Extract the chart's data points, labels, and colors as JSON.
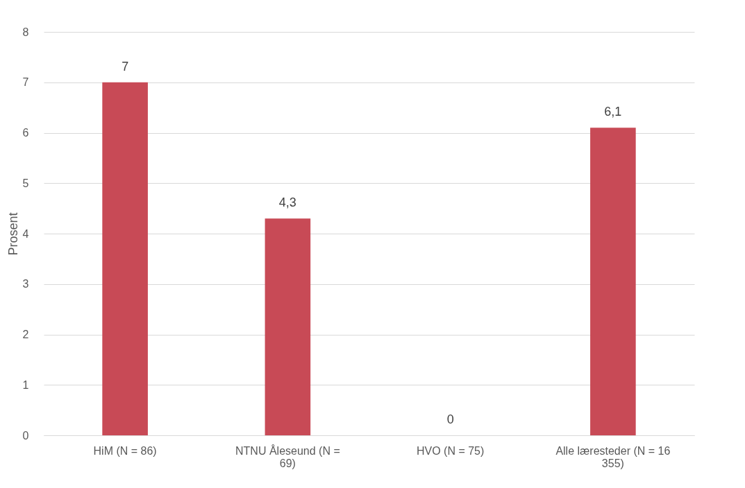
{
  "chart_data": {
    "type": "bar",
    "ylabel": "Prosent",
    "categories": [
      "HiM (N = 86)",
      "NTNU Åleseund (N = 69)",
      "HVO (N = 75)",
      "Alle læresteder (N = 16 355)"
    ],
    "values": [
      7,
      4.3,
      0,
      6.1
    ],
    "value_labels": [
      "7",
      "4,3",
      "0",
      "6,1"
    ],
    "color": "#c84a56",
    "ylim": [
      0,
      8
    ],
    "yticks": [
      0,
      1,
      2,
      3,
      4,
      5,
      6,
      7,
      8
    ],
    "grid": "y"
  }
}
